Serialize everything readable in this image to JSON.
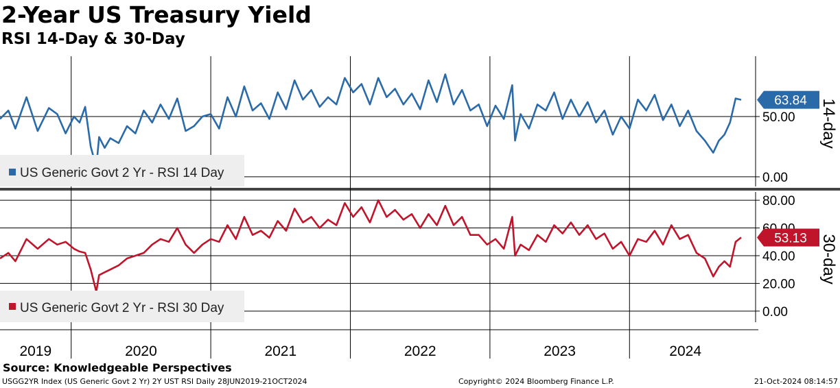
{
  "header": {
    "title": "2-Year US Treasury Yield",
    "subtitle": "RSI 14-Day & 30-Day"
  },
  "footer": {
    "source": "Source: Knowledgeable Perspectives",
    "index_info": "USGG2YR Index (US Generic Govt 2 Yr) 2Y UST RSI  Daily 28JUN2019-21OCT2024",
    "copyright": "Copyright© 2024 Bloomberg Finance L.P.",
    "timestamp": "21-Oct-2024 08:14:57"
  },
  "colors": {
    "rsi14": "#2a6aa8",
    "rsi30": "#c0142b",
    "grid": "#000000",
    "legend_bg": "#eeeeee",
    "divider": "#444444"
  },
  "chart_data": [
    {
      "type": "line",
      "panel": "top",
      "axis_title": "14-day",
      "legend": "US Generic Govt 2 Yr - RSI 14 Day",
      "last_value_label": "63.84",
      "ylim": [
        -8,
        100
      ],
      "yticks": [
        0,
        50
      ],
      "ytick_labels": [
        "0.00",
        "50.00"
      ],
      "x_years": [
        "2019",
        "2020",
        "2021",
        "2022",
        "2023",
        "2024"
      ],
      "x_start": 2019.49,
      "x_end": 2024.8,
      "series": [
        {
          "name": "US Generic Govt 2 Yr - RSI 14 Day",
          "x": [
            2019.49,
            2019.55,
            2019.6,
            2019.68,
            2019.76,
            2019.84,
            2019.9,
            2019.96,
            2020.02,
            2020.06,
            2020.1,
            2020.14,
            2020.18,
            2020.2,
            2020.24,
            2020.28,
            2020.34,
            2020.4,
            2020.46,
            2020.52,
            2020.58,
            2020.64,
            2020.7,
            2020.76,
            2020.82,
            2020.88,
            2020.94,
            2021.0,
            2021.06,
            2021.12,
            2021.18,
            2021.24,
            2021.3,
            2021.36,
            2021.42,
            2021.48,
            2021.54,
            2021.6,
            2021.66,
            2021.72,
            2021.78,
            2021.84,
            2021.9,
            2021.96,
            2022.02,
            2022.08,
            2022.14,
            2022.2,
            2022.26,
            2022.32,
            2022.38,
            2022.44,
            2022.5,
            2022.56,
            2022.62,
            2022.68,
            2022.74,
            2022.8,
            2022.86,
            2022.92,
            2022.98,
            2023.04,
            2023.1,
            2023.16,
            2023.18,
            2023.22,
            2023.28,
            2023.34,
            2023.4,
            2023.46,
            2023.52,
            2023.58,
            2023.64,
            2023.7,
            2023.76,
            2023.82,
            2023.88,
            2023.94,
            2024.0,
            2024.06,
            2024.12,
            2024.18,
            2024.24,
            2024.3,
            2024.36,
            2024.42,
            2024.48,
            2024.54,
            2024.6,
            2024.64,
            2024.68,
            2024.72,
            2024.76,
            2024.8
          ],
          "values": [
            48,
            55,
            40,
            66,
            38,
            57,
            52,
            36,
            50,
            45,
            58,
            25,
            8,
            33,
            24,
            32,
            28,
            42,
            36,
            55,
            45,
            60,
            48,
            65,
            38,
            42,
            50,
            52,
            40,
            66,
            50,
            75,
            55,
            61,
            48,
            70,
            56,
            80,
            64,
            72,
            58,
            66,
            60,
            82,
            70,
            77,
            60,
            82,
            66,
            73,
            60,
            69,
            56,
            80,
            62,
            85,
            60,
            72,
            55,
            60,
            42,
            59,
            48,
            76,
            30,
            52,
            40,
            60,
            55,
            70,
            48,
            64,
            50,
            62,
            45,
            55,
            35,
            50,
            40,
            64,
            55,
            68,
            47,
            60,
            42,
            55,
            38,
            30,
            20,
            30,
            35,
            45,
            65,
            63.84
          ]
        }
      ]
    },
    {
      "type": "line",
      "panel": "bottom",
      "axis_title": "30-day",
      "legend": "US Generic Govt 2 Yr - RSI 30 Day",
      "last_value_label": "53.13",
      "ylim": [
        -8,
        86
      ],
      "yticks": [
        0,
        20,
        40,
        60,
        80
      ],
      "ytick_labels": [
        "0.00",
        "20.00",
        "40.00",
        "60.00",
        "80.00"
      ],
      "x_years": [
        "2019",
        "2020",
        "2021",
        "2022",
        "2023",
        "2024"
      ],
      "x_start": 2019.49,
      "x_end": 2024.8,
      "series": [
        {
          "name": "US Generic Govt 2 Yr - RSI 30 Day",
          "x": [
            2019.49,
            2019.55,
            2019.6,
            2019.68,
            2019.76,
            2019.84,
            2019.9,
            2019.96,
            2020.02,
            2020.06,
            2020.1,
            2020.14,
            2020.18,
            2020.2,
            2020.24,
            2020.28,
            2020.34,
            2020.4,
            2020.46,
            2020.52,
            2020.58,
            2020.64,
            2020.7,
            2020.76,
            2020.82,
            2020.88,
            2020.94,
            2021.0,
            2021.06,
            2021.12,
            2021.18,
            2021.24,
            2021.3,
            2021.36,
            2021.42,
            2021.48,
            2021.54,
            2021.6,
            2021.66,
            2021.72,
            2021.78,
            2021.84,
            2021.9,
            2021.96,
            2022.02,
            2022.08,
            2022.14,
            2022.2,
            2022.26,
            2022.32,
            2022.38,
            2022.44,
            2022.5,
            2022.56,
            2022.62,
            2022.68,
            2022.74,
            2022.8,
            2022.86,
            2022.92,
            2022.98,
            2023.04,
            2023.1,
            2023.16,
            2023.18,
            2023.22,
            2023.28,
            2023.34,
            2023.4,
            2023.46,
            2023.52,
            2023.58,
            2023.64,
            2023.7,
            2023.76,
            2023.82,
            2023.88,
            2023.94,
            2024.0,
            2024.06,
            2024.12,
            2024.18,
            2024.24,
            2024.3,
            2024.36,
            2024.42,
            2024.48,
            2024.54,
            2024.6,
            2024.64,
            2024.68,
            2024.72,
            2024.76,
            2024.8
          ],
          "values": [
            38,
            42,
            36,
            52,
            45,
            52,
            48,
            50,
            45,
            43,
            42,
            30,
            14,
            26,
            28,
            30,
            33,
            38,
            40,
            42,
            48,
            52,
            50,
            60,
            48,
            42,
            48,
            52,
            50,
            62,
            52,
            68,
            55,
            58,
            53,
            65,
            58,
            74,
            64,
            68,
            60,
            66,
            62,
            78,
            68,
            75,
            64,
            80,
            68,
            73,
            66,
            70,
            60,
            70,
            62,
            76,
            62,
            68,
            55,
            55,
            48,
            52,
            45,
            68,
            40,
            48,
            44,
            55,
            50,
            62,
            56,
            64,
            55,
            62,
            52,
            56,
            45,
            50,
            40,
            52,
            50,
            58,
            48,
            62,
            52,
            55,
            42,
            38,
            25,
            32,
            36,
            32,
            50,
            53.13
          ]
        }
      ]
    }
  ]
}
